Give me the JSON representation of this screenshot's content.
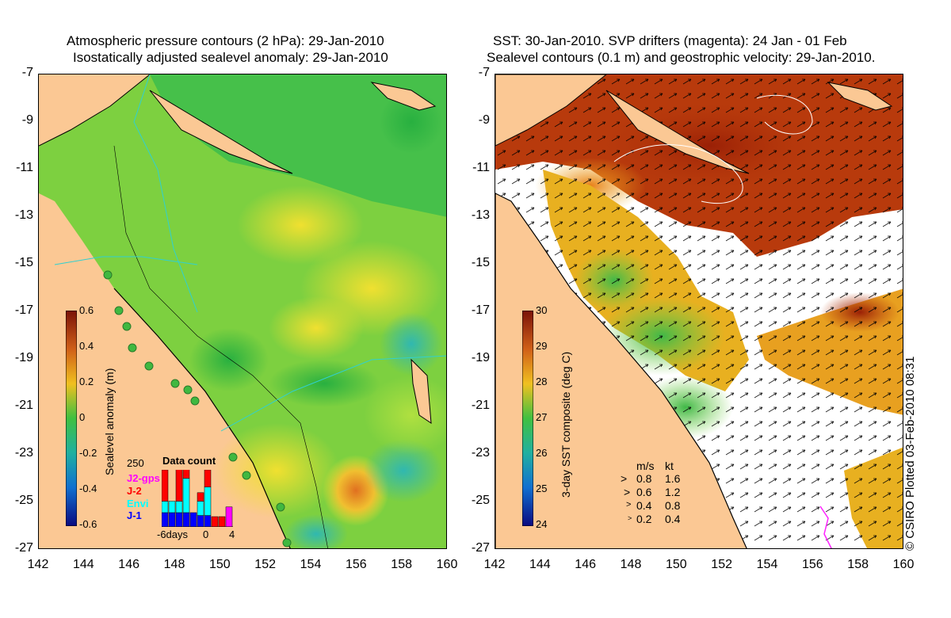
{
  "left_panel": {
    "title_line1": "Atmospheric pressure contours (2 hPa): 29-Jan-2010",
    "title_line2": "Isostatically adjusted sealevel anomaly: 29-Jan-2010",
    "colorbar_label": "Sealevel anomaly (m)",
    "colorbar_ticks": [
      "0.6",
      "0.4",
      "0.2",
      "0",
      "-0.2",
      "-0.4",
      "-0.6"
    ],
    "colors": {
      "land": "#fbc894",
      "ocean_base": "#3ec84a",
      "high": "#e8e83a",
      "low": "#1faaa0"
    },
    "inset": {
      "title": "Data count",
      "ymax_label": "250",
      "legend": [
        {
          "label": "J2-gps",
          "color": "#ff00ff"
        },
        {
          "label": "J-2",
          "color": "#ff0000"
        },
        {
          "label": "Envi",
          "color": "#00ffff"
        },
        {
          "label": "J-1",
          "color": "#0000ff"
        }
      ],
      "x_labels": [
        "-6days",
        "0",
        "4"
      ],
      "bars": [
        {
          "j1": 0.25,
          "envi": 0.2,
          "j2": 0.55,
          "j2gps": 0
        },
        {
          "j1": 0.25,
          "envi": 0.2,
          "j2": 0.0,
          "j2gps": 0
        },
        {
          "j1": 0.25,
          "envi": 0.2,
          "j2": 0.65,
          "j2gps": 0
        },
        {
          "j1": 0.25,
          "envi": 0.6,
          "j2": 0.2,
          "j2gps": 0
        },
        {
          "j1": 0.25,
          "envi": 0.0,
          "j2": 0.0,
          "j2gps": 0
        },
        {
          "j1": 0.2,
          "envi": 0.25,
          "j2": 0.15,
          "j2gps": 0
        },
        {
          "j1": 0.2,
          "envi": 0.5,
          "j2": 0.3,
          "j2gps": 0
        },
        {
          "j1": 0.0,
          "envi": 0.0,
          "j2": 0.18,
          "j2gps": 0
        },
        {
          "j1": 0.0,
          "envi": 0.0,
          "j2": 0.18,
          "j2gps": 0
        },
        {
          "j1": 0.0,
          "envi": 0.0,
          "j2": 0.0,
          "j2gps": 0.35
        }
      ]
    }
  },
  "right_panel": {
    "title_line1": "SST: 30-Jan-2010. SVP drifters (magenta): 24 Jan - 01 Feb",
    "title_line2": "Sealevel contours (0.1 m) and geostrophic velocity: 29-Jan-2010.",
    "colorbar_label": "3-day SST composite (deg C)",
    "colorbar_ticks": [
      "30",
      "29",
      "28",
      "27",
      "26",
      "25",
      "24"
    ],
    "colors": {
      "land": "#fbc894",
      "warm": "#a02808",
      "mid": "#f0a020",
      "cool": "#3cb84a",
      "cloud": "#ffffff"
    },
    "velocity_legend": {
      "header_ms": "m/s",
      "header_kt": "kt",
      "rows": [
        {
          "ms": "0.8",
          "kt": "1.6"
        },
        {
          "ms": "0.6",
          "kt": "1.2"
        },
        {
          "ms": "0.4",
          "kt": "0.8"
        },
        {
          "ms": "0.2",
          "kt": "0.4"
        }
      ]
    }
  },
  "axes": {
    "lat_ticks": [
      "-7",
      "-9",
      "-11",
      "-13",
      "-15",
      "-17",
      "-19",
      "-21",
      "-23",
      "-25",
      "-27"
    ],
    "lon_ticks": [
      "142",
      "144",
      "146",
      "148",
      "150",
      "152",
      "154",
      "156",
      "158",
      "160"
    ]
  },
  "copyright": "© CSIRO Plotted 03-Feb-2010 08:31"
}
